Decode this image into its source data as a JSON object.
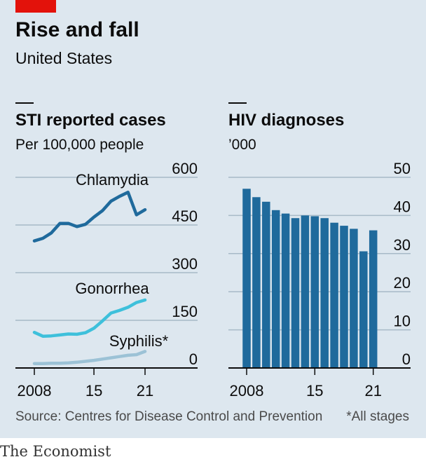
{
  "header": {
    "title": "Rise and fall",
    "subtitle": "United States"
  },
  "left_chart": {
    "title": "STI reported cases",
    "subtitle": "Per 100,000 people"
  },
  "right_chart": {
    "title": "HIV diagnoses",
    "subtitle": "’000"
  },
  "footer": {
    "source": "Source: Centres for Disease Control and Prevention",
    "note": "*All stages",
    "logo": "The Economist"
  },
  "colors": {
    "background": "#dde7ef",
    "chlamydia": "#1f6a9c",
    "gonorrhea": "#3ec0db",
    "syphilis": "#9cc2d6",
    "hiv_bars": "#1f6a9c",
    "accent": "#e3120b"
  },
  "chart_data": [
    {
      "type": "line",
      "title": "STI reported cases",
      "subtitle": "Per 100,000 people",
      "x": [
        2008,
        2009,
        2010,
        2011,
        2012,
        2013,
        2014,
        2015,
        2016,
        2017,
        2018,
        2019,
        2020,
        2021
      ],
      "x_tick_labels": [
        "2008",
        "15",
        "21"
      ],
      "x_ticks": [
        2008,
        2015,
        2021
      ],
      "ylim": [
        0,
        600
      ],
      "y_ticks": [
        0,
        150,
        300,
        450,
        600
      ],
      "y_axis_side": "right",
      "grid": true,
      "series": [
        {
          "name": "Chlamydia",
          "values": [
            400,
            408,
            425,
            455,
            455,
            445,
            452,
            475,
            495,
            525,
            540,
            553,
            482,
            498
          ]
        },
        {
          "name": "Gonorrhea",
          "values": [
            112,
            100,
            101,
            104,
            107,
            106,
            111,
            125,
            148,
            173,
            181,
            191,
            206,
            214
          ]
        },
        {
          "name": "Syphilis*",
          "values": [
            14,
            14,
            15,
            15,
            16,
            18,
            21,
            24,
            28,
            32,
            36,
            40,
            42,
            52
          ]
        }
      ]
    },
    {
      "type": "bar",
      "title": "HIV diagnoses",
      "subtitle": "’000",
      "categories": [
        2008,
        2009,
        2010,
        2011,
        2012,
        2013,
        2014,
        2015,
        2016,
        2017,
        2018,
        2019,
        2020,
        2021
      ],
      "x_tick_labels": [
        "2008",
        "15",
        "21"
      ],
      "x_ticks": [
        2008,
        2015,
        2021
      ],
      "values": [
        47.0,
        44.8,
        43.6,
        41.4,
        40.5,
        39.3,
        40.0,
        39.8,
        39.3,
        38.1,
        37.3,
        36.5,
        30.6,
        36.1
      ],
      "ylim": [
        0,
        50
      ],
      "y_ticks": [
        0,
        10,
        20,
        30,
        40,
        50
      ],
      "y_axis_side": "right",
      "grid": true
    }
  ]
}
